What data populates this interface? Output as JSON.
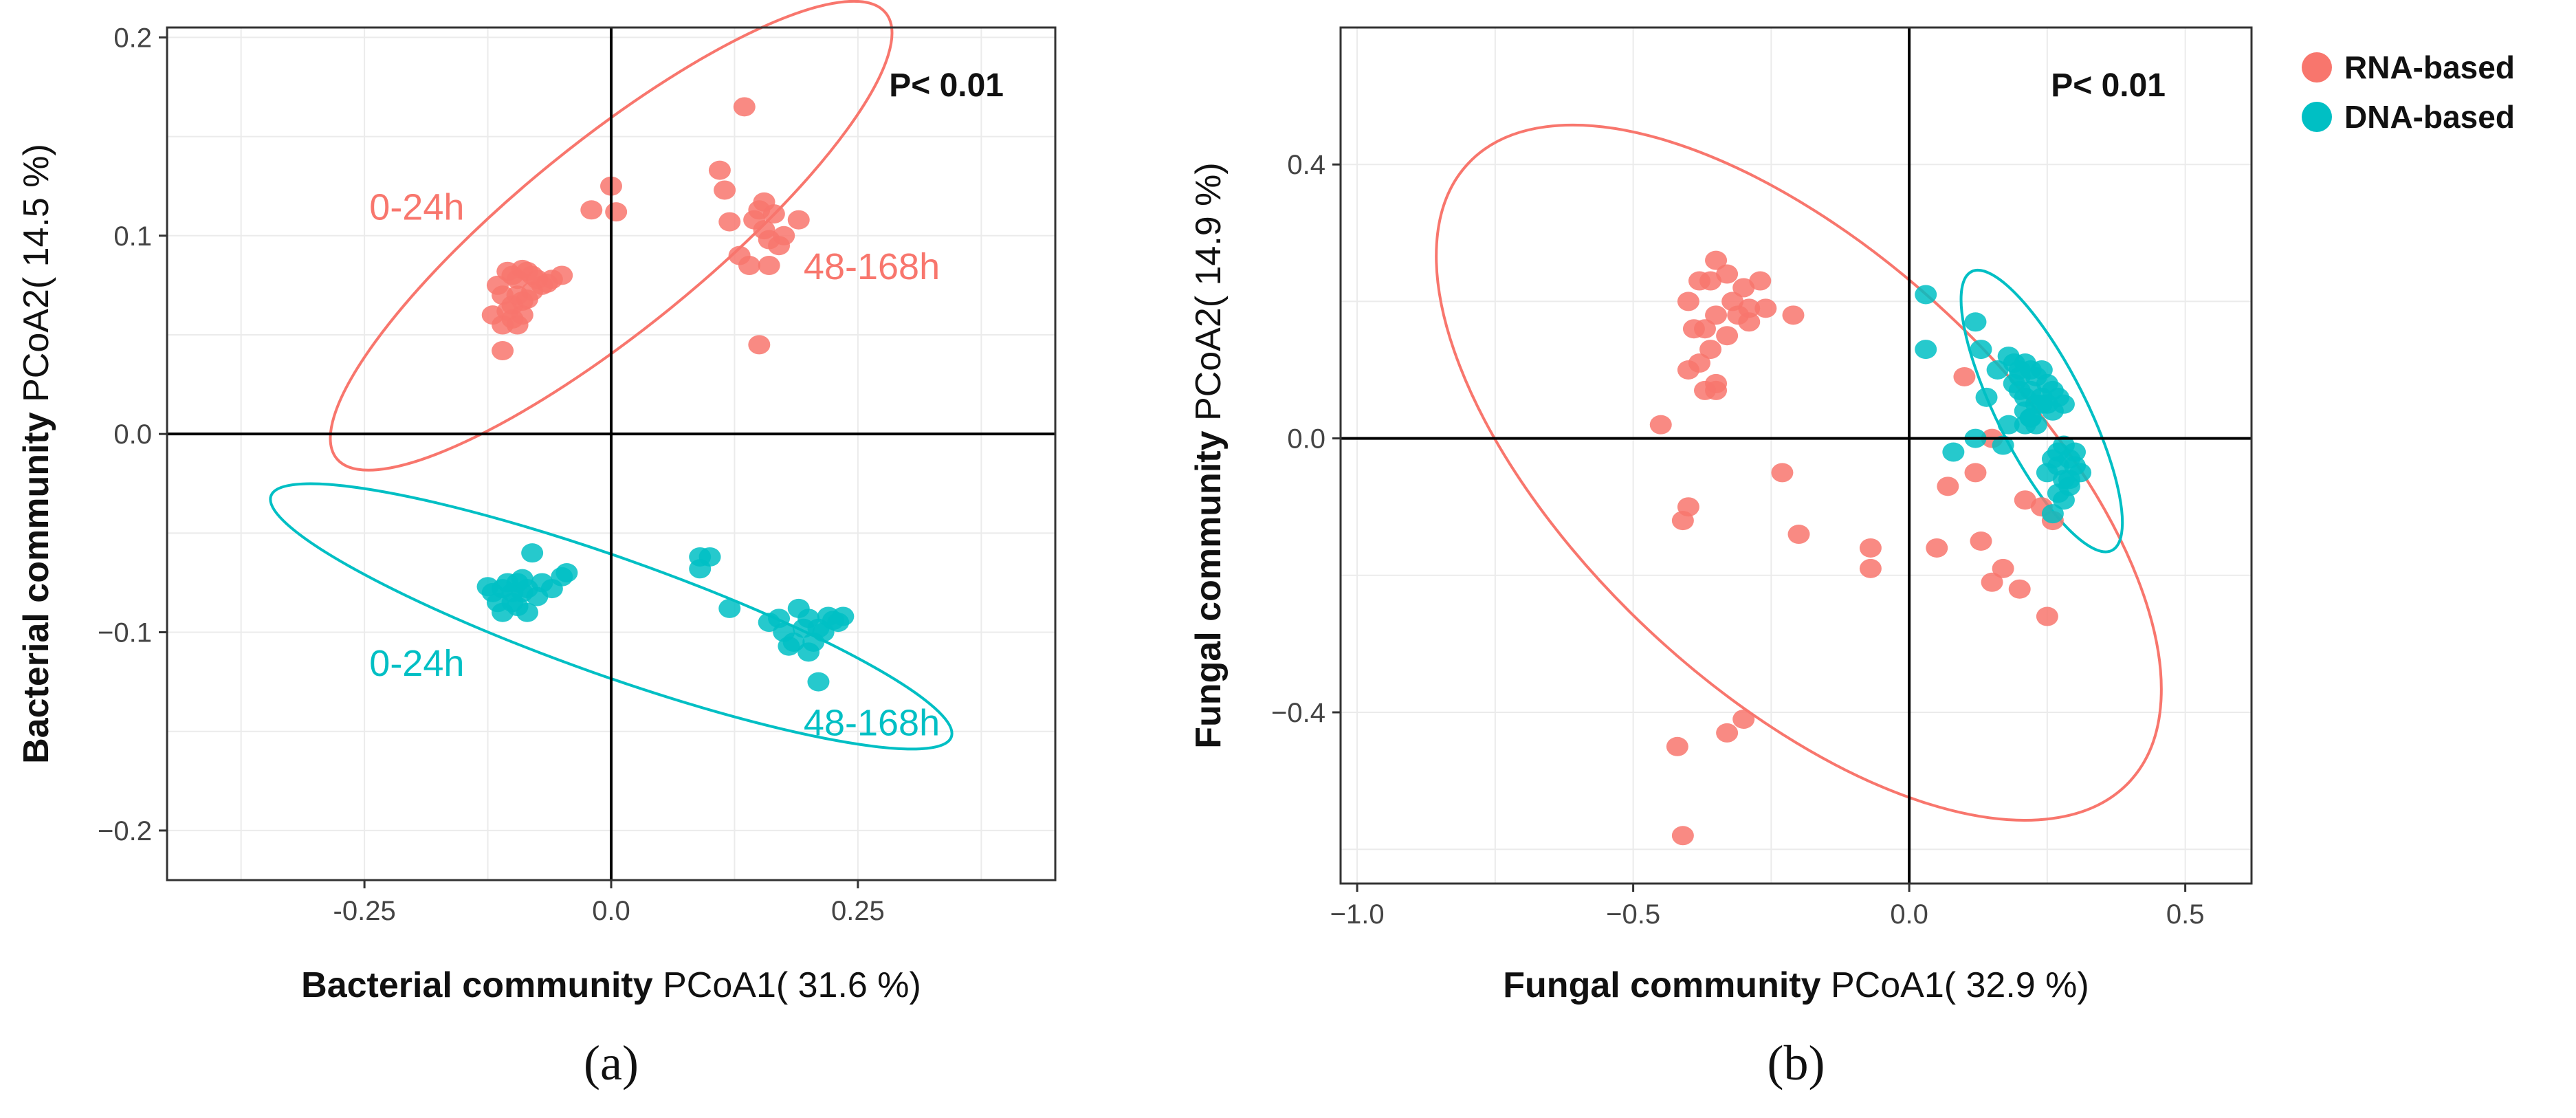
{
  "colors": {
    "rna": "#F8766D",
    "dna": "#00BFC4",
    "grid": "#EBEBEB",
    "axis": "#000000"
  },
  "legend": {
    "position": "top-right",
    "items": [
      {
        "label": "RNA-based",
        "color": "#F8766D"
      },
      {
        "label": "DNA-based",
        "color": "#00BFC4"
      }
    ]
  },
  "chart_data": [
    {
      "type": "scatter",
      "panel_label": "(a)",
      "xlabel_bold": "Bacterial community",
      "xlabel_rest": " PCoA1( 31.6 %)",
      "ylabel_bold": "Bacterial community",
      "ylabel_rest": " PCoA2( 14.5 %)",
      "xlim": [
        -0.45,
        0.45
      ],
      "ylim": [
        -0.225,
        0.205
      ],
      "xticks": [
        -0.25,
        0.0,
        0.25
      ],
      "xtick_labels": [
        "-0.25",
        "0.0",
        "0.25"
      ],
      "yticks": [
        -0.2,
        -0.1,
        0.0,
        0.1,
        0.2
      ],
      "ytick_labels": [
        "−0.2",
        "−0.1",
        "0.0",
        "0.1",
        "0.2"
      ],
      "p_value": "P< 0.01",
      "annotations": [
        {
          "text": "0-24h",
          "x": -0.245,
          "y": 0.108,
          "series": "RNA-based"
        },
        {
          "text": "48-168h",
          "x": 0.195,
          "y": 0.078,
          "series": "RNA-based"
        },
        {
          "text": "0-24h",
          "x": -0.245,
          "y": -0.122,
          "series": "DNA-based"
        },
        {
          "text": "48-168h",
          "x": 0.195,
          "y": -0.152,
          "series": "DNA-based"
        }
      ],
      "series": [
        {
          "name": "RNA-based",
          "x": [
            -0.12,
            -0.115,
            -0.11,
            -0.105,
            -0.1,
            -0.1,
            -0.095,
            -0.095,
            -0.09,
            -0.09,
            -0.085,
            -0.08,
            -0.08,
            -0.075,
            -0.07,
            -0.065,
            -0.06,
            -0.05,
            -0.11,
            -0.09,
            -0.1,
            -0.105,
            -0.085,
            -0.095,
            -0.11,
            -0.02,
            0.0,
            0.005,
            0.11,
            0.115,
            0.12,
            0.13,
            0.135,
            0.14,
            0.145,
            0.15,
            0.155,
            0.155,
            0.16,
            0.16,
            0.165,
            0.17,
            0.175,
            0.19,
            0.15
          ],
          "y": [
            0.06,
            0.075,
            0.07,
            0.082,
            0.08,
            0.065,
            0.078,
            0.07,
            0.083,
            0.067,
            0.082,
            0.08,
            0.072,
            0.078,
            0.075,
            0.076,
            0.078,
            0.08,
            0.055,
            0.06,
            0.058,
            0.062,
            0.068,
            0.055,
            0.042,
            0.113,
            0.125,
            0.112,
            0.133,
            0.123,
            0.107,
            0.09,
            0.165,
            0.085,
            0.108,
            0.113,
            0.117,
            0.103,
            0.085,
            0.098,
            0.111,
            0.095,
            0.1,
            0.108,
            0.045
          ]
        },
        {
          "name": "DNA-based",
          "x": [
            -0.125,
            -0.12,
            -0.115,
            -0.11,
            -0.105,
            -0.1,
            -0.1,
            -0.095,
            -0.09,
            -0.09,
            -0.085,
            -0.08,
            -0.075,
            -0.07,
            -0.06,
            -0.05,
            -0.045,
            -0.11,
            -0.095,
            -0.085,
            0.09,
            0.1,
            0.09,
            0.12,
            0.16,
            0.17,
            0.175,
            0.185,
            0.19,
            0.195,
            0.2,
            0.205,
            0.21,
            0.215,
            0.22,
            0.225,
            0.23,
            0.235,
            0.2,
            0.21,
            0.18
          ],
          "y": [
            -0.077,
            -0.08,
            -0.085,
            -0.078,
            -0.075,
            -0.08,
            -0.085,
            -0.075,
            -0.08,
            -0.073,
            -0.078,
            -0.06,
            -0.082,
            -0.075,
            -0.078,
            -0.072,
            -0.07,
            -0.09,
            -0.087,
            -0.09,
            -0.062,
            -0.062,
            -0.068,
            -0.088,
            -0.095,
            -0.093,
            -0.1,
            -0.105,
            -0.088,
            -0.098,
            -0.093,
            -0.105,
            -0.098,
            -0.1,
            -0.092,
            -0.094,
            -0.095,
            -0.092,
            -0.11,
            -0.125,
            -0.107
          ]
        }
      ],
      "ellipses": [
        {
          "series": "RNA-based",
          "cx": 0.0,
          "cy": 0.1,
          "rx": 0.3,
          "ry": 0.05,
          "angle_deg": 22
        },
        {
          "series": "DNA-based",
          "cx": 0.0,
          "cy": -0.092,
          "rx": 0.35,
          "ry": 0.03,
          "angle_deg": -10
        }
      ]
    },
    {
      "type": "scatter",
      "panel_label": "(b)",
      "xlabel_bold": "Fungal community",
      "xlabel_rest": " PCoA1( 32.9 %)",
      "ylabel_bold": "Fungal community",
      "ylabel_rest": " PCoA2( 14.9 %)",
      "xlim": [
        -1.03,
        0.62
      ],
      "ylim": [
        -0.65,
        0.6
      ],
      "xticks": [
        -1.0,
        -0.5,
        0.0,
        0.5
      ],
      "xtick_labels": [
        "−1.0",
        "−0.5",
        "0.0",
        "0.5"
      ],
      "yticks": [
        -0.4,
        0.0,
        0.4
      ],
      "ytick_labels": [
        "−0.4",
        "0.0",
        "0.4"
      ],
      "p_value": "P< 0.01",
      "annotations": [],
      "series": [
        {
          "name": "RNA-based",
          "x": [
            -0.4,
            -0.36,
            -0.33,
            -0.3,
            -0.27,
            -0.38,
            -0.35,
            -0.32,
            -0.29,
            -0.26,
            -0.21,
            -0.39,
            -0.37,
            -0.35,
            -0.33,
            -0.31,
            -0.29,
            -0.36,
            -0.4,
            -0.38,
            -0.37,
            -0.35,
            -0.35,
            -0.45,
            -0.4,
            -0.41,
            -0.23,
            -0.2,
            -0.07,
            -0.07,
            0.05,
            0.07,
            0.12,
            0.13,
            0.15,
            0.17,
            0.2,
            0.21,
            0.26,
            0.24,
            0.25,
            0.1,
            0.15,
            -0.42,
            -0.33,
            -0.3,
            -0.41
          ],
          "y": [
            0.2,
            0.23,
            0.24,
            0.22,
            0.23,
            0.23,
            0.26,
            0.2,
            0.19,
            0.19,
            0.18,
            0.16,
            0.16,
            0.18,
            0.15,
            0.18,
            0.17,
            0.13,
            0.1,
            0.11,
            0.07,
            0.08,
            0.07,
            0.02,
            -0.1,
            -0.12,
            -0.05,
            -0.14,
            -0.16,
            -0.19,
            -0.16,
            -0.07,
            -0.05,
            -0.15,
            -0.21,
            -0.19,
            -0.22,
            -0.09,
            -0.12,
            -0.1,
            -0.26,
            0.09,
            0.0,
            -0.45,
            -0.43,
            -0.41,
            -0.58
          ]
        },
        {
          "name": "DNA-based",
          "x": [
            0.03,
            0.03,
            0.12,
            0.13,
            0.14,
            0.16,
            0.18,
            0.19,
            0.2,
            0.21,
            0.22,
            0.23,
            0.24,
            0.25,
            0.26,
            0.27,
            0.28,
            0.19,
            0.2,
            0.21,
            0.22,
            0.23,
            0.24,
            0.25,
            0.21,
            0.22,
            0.23,
            0.24,
            0.26,
            0.27,
            0.28,
            0.29,
            0.3,
            0.31,
            0.27,
            0.28,
            0.29,
            0.3,
            0.25,
            0.26,
            0.27,
            0.28,
            0.29,
            0.18,
            0.17,
            0.08,
            0.12,
            0.2,
            0.21,
            0.22,
            0.26
          ],
          "y": [
            0.21,
            0.13,
            0.17,
            0.13,
            0.06,
            0.1,
            0.12,
            0.11,
            0.1,
            0.11,
            0.1,
            0.09,
            0.1,
            0.08,
            0.07,
            0.06,
            0.05,
            0.08,
            0.09,
            0.06,
            0.07,
            0.05,
            0.06,
            0.05,
            0.04,
            0.03,
            0.02,
            0.05,
            0.04,
            -0.02,
            -0.01,
            -0.03,
            -0.02,
            -0.05,
            -0.04,
            -0.06,
            -0.07,
            -0.04,
            -0.05,
            -0.03,
            -0.08,
            -0.09,
            -0.06,
            0.02,
            -0.01,
            -0.02,
            0.0,
            0.07,
            0.02,
            0.03,
            -0.11
          ]
        }
      ],
      "ellipses": [
        {
          "series": "RNA-based",
          "cx": -0.2,
          "cy": -0.05,
          "rx": 0.75,
          "ry": 0.34,
          "angle_deg": -37
        },
        {
          "series": "DNA-based",
          "cx": 0.24,
          "cy": 0.04,
          "rx": 0.24,
          "ry": 0.075,
          "angle_deg": -58
        }
      ]
    }
  ]
}
